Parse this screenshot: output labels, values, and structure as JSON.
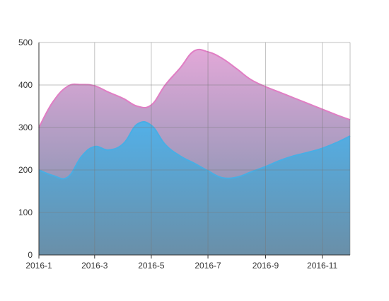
{
  "chart_data": {
    "type": "area",
    "title": "",
    "xlabel": "",
    "ylabel": "",
    "x_tick_labels": [
      "2016-1",
      "2016-3",
      "2016-5",
      "2016-7",
      "2016-9",
      "2016-11"
    ],
    "y_tick_labels": [
      "0",
      "100",
      "200",
      "300",
      "400",
      "500"
    ],
    "ylim": [
      0,
      500
    ],
    "grid": true,
    "legend": "none",
    "x": [
      "2016-01-01",
      "2016-01-16",
      "2016-02-01",
      "2016-02-16",
      "2016-03-01",
      "2016-03-16",
      "2016-04-01",
      "2016-04-16",
      "2016-05-01",
      "2016-05-16",
      "2016-06-01",
      "2016-06-16",
      "2016-07-01",
      "2016-07-16",
      "2016-08-01",
      "2016-08-16",
      "2016-09-01",
      "2016-09-16",
      "2016-10-01",
      "2016-10-16",
      "2016-11-01",
      "2016-11-16",
      "2016-12-01"
    ],
    "series": [
      {
        "color_top": "#e2a8d8",
        "color_bottom": "#6f8fa8",
        "line_color": "#e07ec4",
        "values": [
          300,
          360,
          397,
          401,
          398,
          383,
          368,
          350,
          353,
          400,
          440,
          480,
          478,
          463,
          438,
          413,
          396,
          383,
          370,
          357,
          343,
          330,
          318
        ]
      },
      {
        "color_top": "#52b0e8",
        "color_bottom": "#6a8fa8",
        "line_color": "#48aee4",
        "values": [
          200,
          187,
          183,
          232,
          255,
          247,
          262,
          308,
          305,
          260,
          233,
          216,
          198,
          182,
          183,
          195,
          208,
          222,
          233,
          241,
          251,
          264,
          280
        ]
      }
    ]
  }
}
